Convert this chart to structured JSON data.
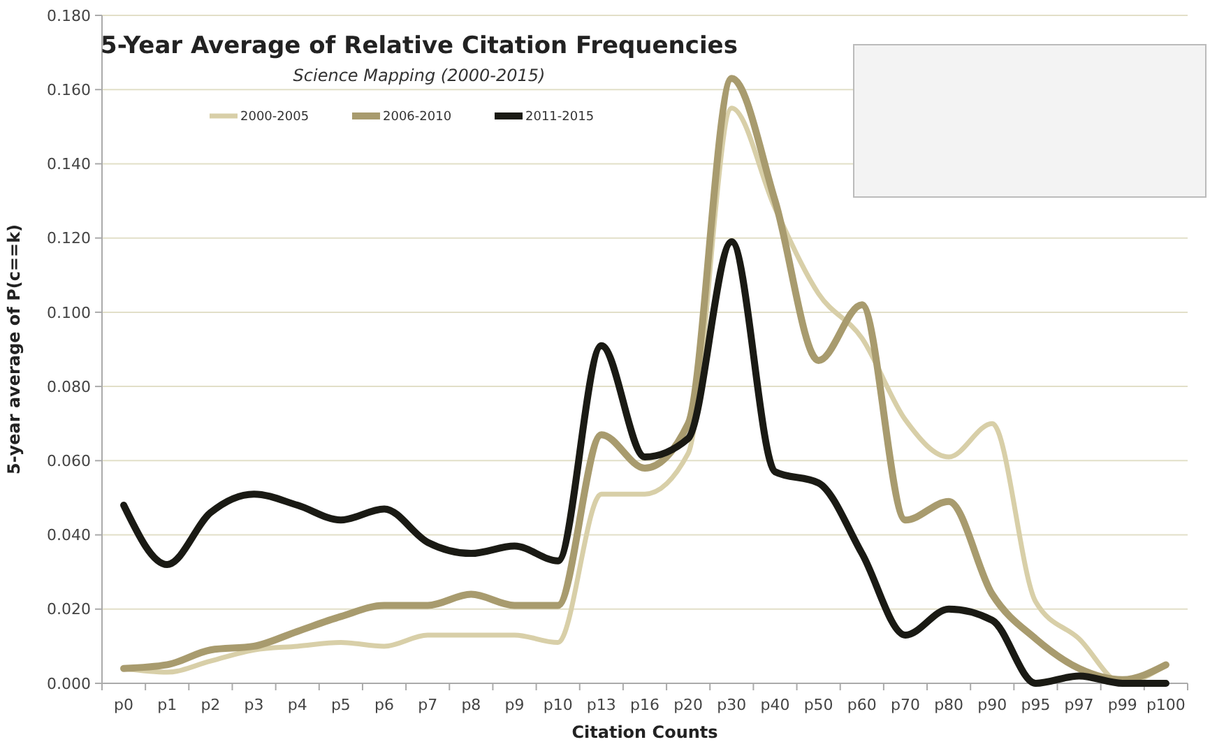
{
  "chart_data": {
    "type": "line",
    "title": "5-Year Average of Relative Citation Frequencies",
    "subtitle": "Science Mapping (2000-2015)",
    "xlabel": "Citation Counts",
    "ylabel": "5-year average of P(c==k)",
    "categories": [
      "p0",
      "p1",
      "p2",
      "p3",
      "p4",
      "p5",
      "p6",
      "p7",
      "p8",
      "p9",
      "p10",
      "p13",
      "p16",
      "p20",
      "p30",
      "p40",
      "p50",
      "p60",
      "p70",
      "p80",
      "p90",
      "p95",
      "p97",
      "p99",
      "p100"
    ],
    "series": [
      {
        "name": "2000-2005",
        "color": "#d8cfa8",
        "values": [
          0.004,
          0.003,
          0.006,
          0.009,
          0.01,
          0.011,
          0.01,
          0.013,
          0.013,
          0.013,
          0.011,
          0.051,
          0.051,
          0.062,
          0.155,
          0.128,
          0.105,
          0.093,
          0.071,
          0.061,
          0.07,
          0.022,
          0.012,
          0.0,
          0.005
        ]
      },
      {
        "name": "2006-2010",
        "color": "#a89b6e",
        "values": [
          0.004,
          0.005,
          0.009,
          0.01,
          0.014,
          0.018,
          0.021,
          0.021,
          0.024,
          0.021,
          0.021,
          0.067,
          0.058,
          0.07,
          0.163,
          0.13,
          0.087,
          0.102,
          0.044,
          0.049,
          0.024,
          0.012,
          0.004,
          0.001,
          0.005
        ]
      },
      {
        "name": "2011-2015",
        "color": "#1a1a14",
        "values": [
          0.048,
          0.032,
          0.046,
          0.051,
          0.048,
          0.044,
          0.047,
          0.038,
          0.035,
          0.037,
          0.033,
          0.091,
          0.061,
          0.066,
          0.119,
          0.057,
          0.054,
          0.035,
          0.013,
          0.02,
          0.017,
          0.0,
          0.002,
          0.0,
          0.0
        ]
      }
    ],
    "ylim": [
      0,
      0.18
    ],
    "yticks": [
      {
        "value": 0,
        "label": "0.000"
      },
      {
        "value": 0.02,
        "label": "0.020"
      },
      {
        "value": 0.04,
        "label": "0.040"
      },
      {
        "value": 0.06,
        "label": "0.060"
      },
      {
        "value": 0.08,
        "label": "0.080"
      },
      {
        "value": 0.1,
        "label": "0.100"
      },
      {
        "value": 0.12,
        "label": "0.120"
      },
      {
        "value": 0.14,
        "label": "0.140"
      },
      {
        "value": 0.16,
        "label": "0.160"
      },
      {
        "value": 0.18,
        "label": "0.180"
      }
    ],
    "grid": "y",
    "legend": "top left",
    "marker": "none",
    "line_style": "solid"
  }
}
